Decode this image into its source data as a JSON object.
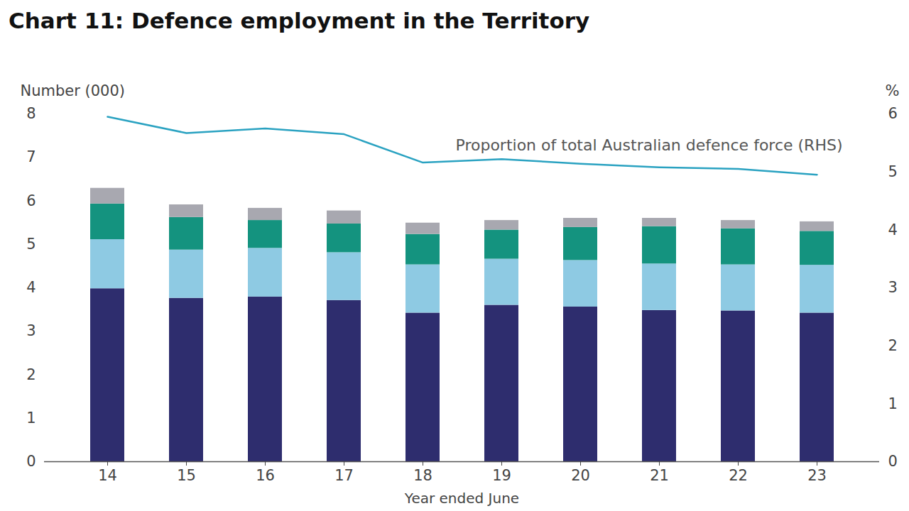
{
  "chart_data": {
    "type": "bar",
    "title": "Chart 11: Defence employment in the Territory",
    "stacked": true,
    "categories": [
      "14",
      "15",
      "16",
      "17",
      "18",
      "19",
      "20",
      "21",
      "22",
      "23"
    ],
    "x_label": "Year ended June",
    "y_label": "Number (000)",
    "y2_label": "%",
    "ylim": [
      0,
      8
    ],
    "yticks": [
      0,
      1,
      2,
      3,
      4,
      5,
      6,
      7,
      8
    ],
    "y2lim": [
      0,
      6
    ],
    "y2ticks": [
      0,
      1,
      2,
      3,
      4,
      5,
      6
    ],
    "series": [
      {
        "color": "#2e2d6e",
        "values": [
          3.98,
          3.76,
          3.79,
          3.71,
          3.42,
          3.6,
          3.56,
          3.48,
          3.47,
          3.42
        ]
      },
      {
        "color": "#8ecae3",
        "values": [
          1.13,
          1.11,
          1.12,
          1.1,
          1.11,
          1.06,
          1.07,
          1.07,
          1.06,
          1.1
        ]
      },
      {
        "color": "#14937f",
        "values": [
          0.82,
          0.75,
          0.64,
          0.66,
          0.7,
          0.67,
          0.76,
          0.86,
          0.83,
          0.78
        ]
      },
      {
        "color": "#a8a8b0",
        "values": [
          0.36,
          0.29,
          0.28,
          0.3,
          0.26,
          0.22,
          0.21,
          0.19,
          0.19,
          0.22
        ]
      },
      {
        "name": "Proportion of total Australian defence force (RHS)",
        "type": "line",
        "axis": "y2",
        "color": "#2aa2c1",
        "values": [
          5.95,
          5.67,
          5.75,
          5.65,
          5.16,
          5.22,
          5.14,
          5.08,
          5.05,
          4.95
        ]
      }
    ]
  }
}
